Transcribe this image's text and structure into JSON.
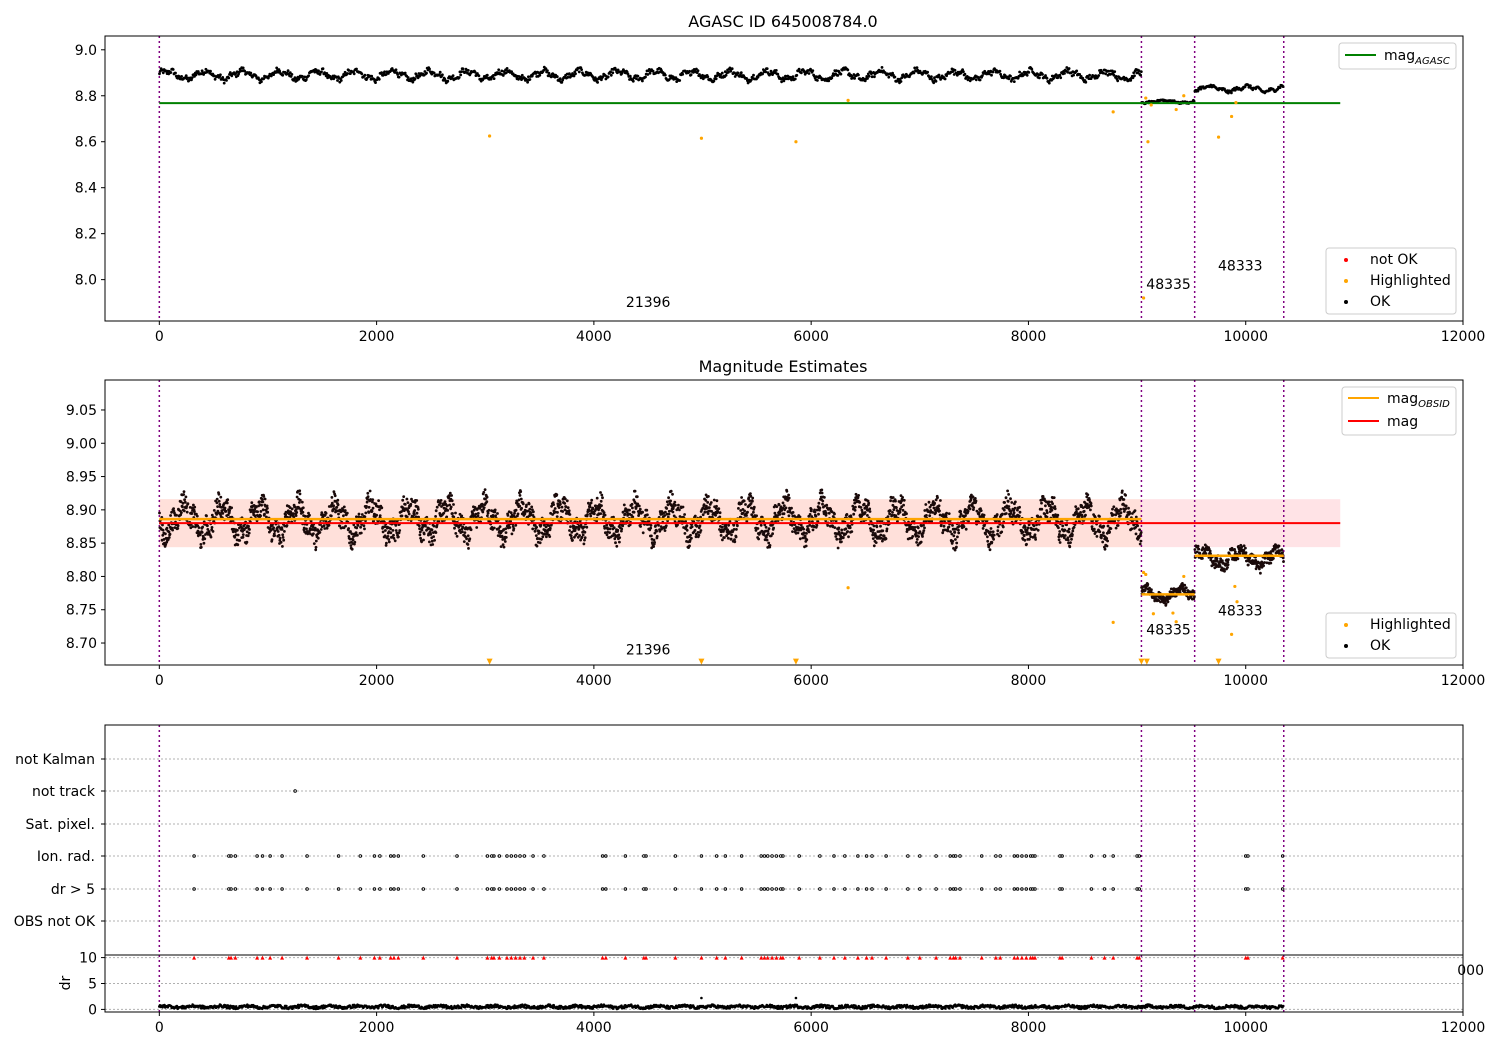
{
  "chart_data": [
    {
      "type": "scatter",
      "title": "AGASC ID 645008784.0",
      "xlim": [
        -500,
        12000
      ],
      "ylim": [
        7.82,
        9.06
      ],
      "x_ticks": [
        0,
        2000,
        4000,
        6000,
        8000,
        10000,
        12000
      ],
      "y_ticks": [
        8.0,
        8.2,
        8.4,
        8.6,
        8.8,
        9.0
      ],
      "obs_boundaries": [
        0,
        9040,
        9530,
        10350
      ],
      "obs_labels": [
        {
          "text": "21396",
          "x": 4500,
          "y": 7.88
        },
        {
          "text": "48335",
          "x": 9290,
          "y": 7.96
        },
        {
          "text": "48333",
          "x": 9950,
          "y": 8.04
        }
      ],
      "series": [
        {
          "name": "OK",
          "color": "#000000",
          "segments": [
            {
              "x0": 0,
              "x1": 9040,
              "mean": 8.89,
              "amp": 0.025
            },
            {
              "x0": 9040,
              "x1": 9530,
              "mean": 8.775,
              "amp": 0.008
            },
            {
              "x0": 9530,
              "x1": 10350,
              "mean": 8.83,
              "amp": 0.015
            }
          ]
        },
        {
          "name": "Highlighted",
          "color": "#ffa500",
          "points": [
            [
              3040,
              8.625
            ],
            [
              4990,
              8.615
            ],
            [
              5860,
              8.6
            ],
            [
              6340,
              8.78
            ],
            [
              8780,
              8.73
            ],
            [
              9060,
              7.92
            ],
            [
              9080,
              8.79
            ],
            [
              9100,
              8.6
            ],
            [
              9130,
              8.76
            ],
            [
              9360,
              8.74
            ],
            [
              9430,
              8.8
            ],
            [
              9750,
              8.62
            ],
            [
              9870,
              8.71
            ],
            [
              9910,
              8.77
            ]
          ]
        },
        {
          "name": "not OK",
          "color": "#ff0000",
          "points": []
        }
      ],
      "lines": [
        {
          "name": "mag_AGASC",
          "color": "#008000",
          "y": 8.768,
          "x0": 0,
          "x1": 10870
        }
      ],
      "legends": [
        {
          "position": "top-right",
          "items": [
            {
              "label": "mag",
              "sub": "AGASC",
              "color": "#008000",
              "kind": "line"
            }
          ]
        },
        {
          "position": "bottom-right",
          "items": [
            {
              "label": "not OK",
              "color": "#ff0000",
              "kind": "dot"
            },
            {
              "label": "Highlighted",
              "color": "#ffa500",
              "kind": "dot"
            },
            {
              "label": "OK",
              "color": "#000000",
              "kind": "dot"
            }
          ]
        }
      ]
    },
    {
      "type": "scatter",
      "title": "Magnitude Estimates",
      "xlim": [
        -500,
        12000
      ],
      "ylim": [
        8.667,
        9.095
      ],
      "x_ticks": [
        0,
        2000,
        4000,
        6000,
        8000,
        10000,
        12000
      ],
      "y_ticks": [
        8.7,
        8.75,
        8.8,
        8.85,
        8.9,
        8.95,
        9.0,
        9.05
      ],
      "y_tick_labels": [
        "8.70",
        "8.75",
        "8.80",
        "8.85",
        "8.90",
        "8.95",
        "9.00",
        "9.05"
      ],
      "obs_boundaries": [
        0,
        9040,
        9530,
        10350
      ],
      "obs_labels": [
        {
          "text": "21396",
          "x": 4500,
          "y": 8.683
        },
        {
          "text": "48335",
          "x": 9290,
          "y": 8.713
        },
        {
          "text": "48333",
          "x": 9950,
          "y": 8.741
        }
      ],
      "series": [
        {
          "name": "OK",
          "color": "#000000",
          "segments": [
            {
              "x0": 0,
              "x1": 9040,
              "mean": 8.885,
              "amp": 0.03
            },
            {
              "x0": 9040,
              "x1": 9530,
              "mean": 8.773,
              "amp": 0.012
            },
            {
              "x0": 9530,
              "x1": 10350,
              "mean": 8.828,
              "amp": 0.016
            }
          ]
        },
        {
          "name": "Highlighted",
          "color": "#ffa500",
          "points": [
            [
              6340,
              8.783
            ],
            [
              8780,
              8.731
            ],
            [
              9060,
              8.806
            ],
            [
              9080,
              8.803
            ],
            [
              9150,
              8.744
            ],
            [
              9330,
              8.745
            ],
            [
              9360,
              8.732
            ],
            [
              9430,
              8.8
            ],
            [
              9900,
              8.785
            ],
            [
              9920,
              8.762
            ],
            [
              9870,
              8.713
            ]
          ]
        },
        {
          "name": "Highlighted below range",
          "color": "#ffa500",
          "marker": "triangle-down",
          "points": [
            [
              3040,
              8.672
            ],
            [
              4990,
              8.672
            ],
            [
              5860,
              8.672
            ],
            [
              9040,
              8.672
            ],
            [
              9090,
              8.672
            ],
            [
              9750,
              8.672
            ]
          ]
        }
      ],
      "lines": [
        {
          "name": "mag",
          "color": "#ff0000",
          "y": 8.88,
          "x0": 0,
          "x1": 10870
        },
        {
          "name": "mag_OBSID",
          "color": "#ffa500",
          "segments": [
            {
              "x0": 0,
              "x1": 9040,
              "y": 8.886
            },
            {
              "x0": 9040,
              "x1": 9530,
              "y": 8.773
            },
            {
              "x0": 9530,
              "x1": 10350,
              "y": 8.831
            }
          ]
        }
      ],
      "band": {
        "color": "#ffc0c8",
        "y0": 8.844,
        "y1": 8.916,
        "x0": 0,
        "x1": 10870
      },
      "band_light": {
        "color": "#ffdcc8",
        "y0": 8.844,
        "y1": 8.916,
        "x0": 0,
        "x1": 9040
      },
      "legends": [
        {
          "position": "top-right",
          "items": [
            {
              "label": "mag",
              "sub": "OBSID",
              "color": "#ffa500",
              "kind": "line"
            },
            {
              "label": "mag",
              "sub": "",
              "color": "#ff0000",
              "kind": "line"
            }
          ]
        },
        {
          "position": "bottom-right",
          "items": [
            {
              "label": "Highlighted",
              "color": "#ffa500",
              "kind": "dot"
            },
            {
              "label": "OK",
              "color": "#000000",
              "kind": "dot"
            }
          ]
        }
      ]
    },
    {
      "type": "scatter",
      "title": "",
      "xlim": [
        -500,
        12000
      ],
      "categories": [
        "not Kalman",
        "not track",
        "Sat. pixel.",
        "Ion. rad.",
        "dr > 5",
        "OBS not OK"
      ],
      "obs_boundaries": [
        0,
        9040,
        9530,
        10350
      ],
      "flag_events": {
        "not track": [
          1250
        ],
        "Ion. rad.": [
          320,
          640,
          660,
          700,
          900,
          950,
          1020,
          1130,
          1360,
          1650,
          1850,
          1980,
          2030,
          2130,
          2160,
          2200,
          2430,
          2740,
          3020,
          3060,
          3080,
          3130,
          3200,
          3240,
          3280,
          3320,
          3360,
          3440,
          3540,
          4080,
          4110,
          4290,
          4460,
          4480,
          4750,
          4990,
          5130,
          5210,
          5360,
          5540,
          5570,
          5600,
          5640,
          5680,
          5720,
          5740,
          5890,
          6080,
          6210,
          6310,
          6430,
          6510,
          6560,
          6690,
          6890,
          7000,
          7150,
          7280,
          7310,
          7330,
          7370,
          7570,
          7700,
          7740,
          7870,
          7900,
          7940,
          7980,
          8020,
          8040,
          8060,
          8290,
          8310,
          8580,
          8700,
          8780,
          9000,
          9020,
          10000,
          10020,
          10340
        ],
        "dr > 5": [
          320,
          640,
          660,
          700,
          900,
          950,
          1020,
          1130,
          1360,
          1650,
          1850,
          1980,
          2030,
          2130,
          2160,
          2200,
          2430,
          2740,
          3020,
          3060,
          3080,
          3130,
          3200,
          3240,
          3280,
          3320,
          3360,
          3440,
          3540,
          4080,
          4110,
          4290,
          4460,
          4480,
          4750,
          4990,
          5130,
          5210,
          5360,
          5540,
          5570,
          5600,
          5640,
          5680,
          5720,
          5740,
          5890,
          6080,
          6210,
          6310,
          6430,
          6510,
          6560,
          6690,
          6890,
          7000,
          7150,
          7280,
          7310,
          7330,
          7370,
          7570,
          7700,
          7740,
          7870,
          7900,
          7940,
          7980,
          8020,
          8040,
          8060,
          8290,
          8310,
          8580,
          8700,
          8780,
          9000,
          9020,
          10000,
          10020,
          10340
        ]
      }
    },
    {
      "type": "scatter",
      "title": "",
      "ylabel": "dr",
      "xlim": [
        -500,
        12000
      ],
      "ylim": [
        -0.5,
        10.5
      ],
      "x_ticks": [
        0,
        2000,
        4000,
        6000,
        8000,
        10000,
        12000
      ],
      "y_ticks": [
        0,
        5,
        10
      ],
      "obs_boundaries": [
        0,
        9040,
        9530,
        10350
      ],
      "clipped_tick_label": "000",
      "series": [
        {
          "name": "dr",
          "color": "#000000",
          "range": [
            0,
            10350
          ],
          "mean": 0.4,
          "amp": 0.35
        },
        {
          "name": "dr > 5 (clipped)",
          "color": "#ff0000",
          "marker": "triangle-up",
          "y": 10
        }
      ]
    }
  ]
}
